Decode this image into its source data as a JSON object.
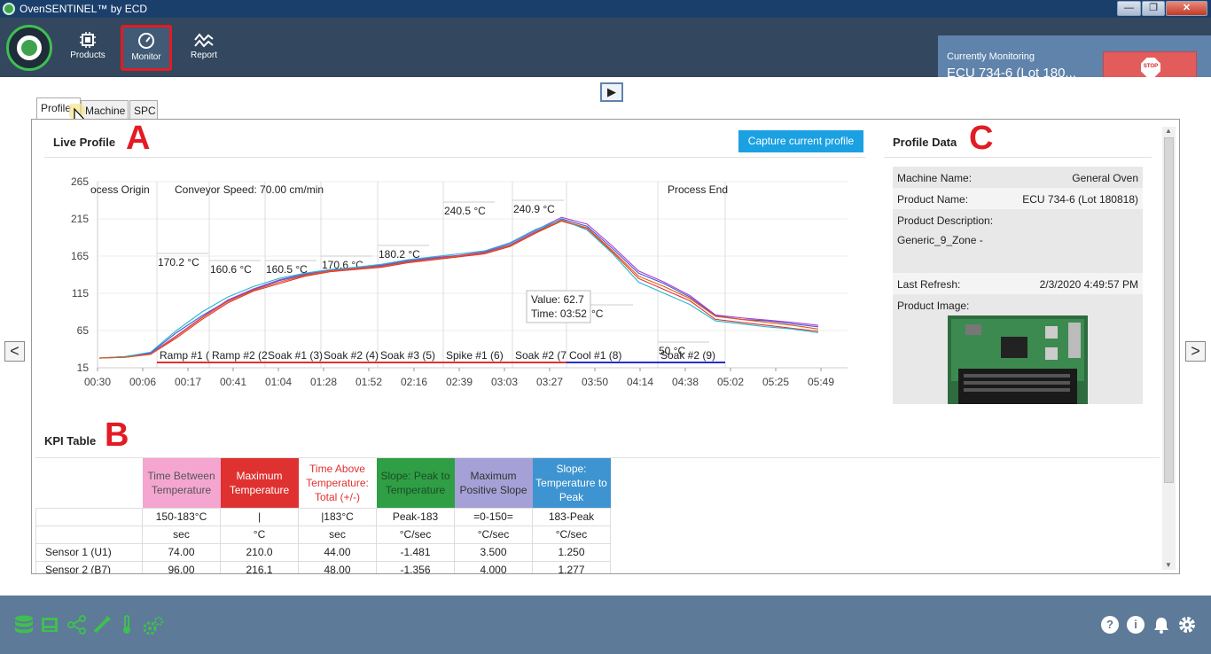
{
  "window": {
    "title": "OvenSENTINEL™ by ECD",
    "minimize": "—",
    "maximize": "❐",
    "close": "✕"
  },
  "nav": {
    "products": "Products",
    "monitor": "Monitor",
    "report": "Report"
  },
  "monitoring": {
    "label": "Currently Monitoring",
    "value": "ECU 734-6 (Lot 180...",
    "stop": "STOP"
  },
  "play_icon": "▶",
  "tabs": [
    "Profile",
    "Machine",
    "SPC"
  ],
  "live_profile": {
    "title": "Live Profile",
    "capture_label": "Capture current profile",
    "marker": "A"
  },
  "chart_data": {
    "type": "line",
    "title": "",
    "x_ticks": [
      "00:30",
      "00:06",
      "00:17",
      "00:41",
      "01:04",
      "01:28",
      "01:52",
      "02:16",
      "02:39",
      "03:03",
      "03:27",
      "03:50",
      "04:14",
      "04:38",
      "05:02",
      "05:25",
      "05:49"
    ],
    "y_ticks": [
      "265",
      "215",
      "165",
      "115",
      "65",
      "15"
    ],
    "ylim": [
      15,
      265
    ],
    "top_labels": [
      "ocess Origin",
      "Conveyor Speed: 70.00 cm/min",
      "Process End"
    ],
    "zones": [
      "Ramp #1 (",
      "Ramp #2 (2",
      "Soak #1 (3)",
      "Soak #2 (4)",
      "Soak #3 (5)",
      "Spike #1 (6)",
      "Soak #2 (7",
      "Cool #1 (8)",
      "Soak #2 (9)"
    ],
    "zone_temps": [
      "170.2 °C",
      "160.6 °C",
      "160.5 °C",
      "170.6 °C",
      "180.2 °C",
      "240.5 °C",
      "240.9 °C",
      "5 °C",
      "50 °C"
    ],
    "tooltip": {
      "value": "Value:  62.7",
      "time": "Time:  03:52"
    },
    "series": [
      {
        "color": "#3b5bdb",
        "values": [
          28,
          30,
          35,
          62,
          85,
          105,
          120,
          132,
          140,
          145,
          148,
          152,
          158,
          162,
          165,
          170,
          180,
          198,
          215,
          205,
          175,
          142,
          128,
          110,
          85,
          80,
          78,
          74,
          70
        ]
      },
      {
        "color": "#e03131",
        "values": [
          28,
          29,
          33,
          55,
          80,
          102,
          118,
          128,
          138,
          144,
          147,
          150,
          156,
          160,
          164,
          168,
          178,
          196,
          212,
          202,
          170,
          135,
          120,
          105,
          80,
          76,
          72,
          68,
          64
        ]
      },
      {
        "color": "#ae3ec9",
        "values": [
          28,
          30,
          34,
          58,
          83,
          106,
          121,
          133,
          141,
          146,
          149,
          153,
          159,
          163,
          166,
          171,
          182,
          200,
          217,
          208,
          178,
          145,
          130,
          112,
          86,
          82,
          79,
          76,
          72
        ]
      },
      {
        "color": "#22b8cf",
        "values": [
          28,
          30,
          36,
          65,
          90,
          110,
          124,
          135,
          142,
          147,
          150,
          154,
          160,
          164,
          168,
          172,
          183,
          201,
          214,
          200,
          168,
          130,
          115,
          100,
          78,
          74,
          70,
          67,
          62
        ]
      },
      {
        "color": "#e8590c",
        "values": [
          28,
          29,
          33,
          57,
          82,
          104,
          119,
          130,
          139,
          145,
          148,
          151,
          157,
          161,
          165,
          169,
          179,
          197,
          213,
          203,
          172,
          138,
          124,
          108,
          84,
          80,
          76,
          72,
          67
        ]
      }
    ]
  },
  "profile_data": {
    "title": "Profile Data",
    "marker": "C",
    "machine_name_label": "Machine Name:",
    "machine_name": "General Oven",
    "product_name_label": "Product Name:",
    "product_name": "ECU 734-6 (Lot 180818)",
    "product_description_label": "Product Description:",
    "product_description": "Generic_9_Zone -",
    "last_refresh_label": "Last Refresh:",
    "last_refresh": "2/3/2020 4:49:57 PM",
    "product_image_label": "Product Image:"
  },
  "kpi": {
    "title": "KPI Table",
    "marker": "B",
    "columns": [
      {
        "header": "Time Between Temperature",
        "sub": "150-183°C",
        "unit": "sec",
        "bg": "#f4a6d0",
        "fg": "#555"
      },
      {
        "header": "Maximum Temperature",
        "sub": "|",
        "unit": "°C",
        "bg": "#e03131",
        "fg": "#fff"
      },
      {
        "header": "Time Above Temperature: Total (+/-)",
        "sub": "|183°C",
        "unit": "sec",
        "bg": "#ffffff",
        "fg": "#e03131"
      },
      {
        "header": "Slope: Peak to Temperature",
        "sub": "Peak-183",
        "unit": "°C/sec",
        "bg": "#2f9e44",
        "fg": "#1b4d28"
      },
      {
        "header": "Maximum Positive Slope",
        "sub": "=0-150=",
        "unit": "°C/sec",
        "bg": "#a5a0d6",
        "fg": "#333"
      },
      {
        "header": "Slope: Temperature to Peak",
        "sub": "183-Peak",
        "unit": "°C/sec",
        "bg": "#3d94d1",
        "fg": "#fff"
      }
    ],
    "rows": [
      {
        "label": "Sensor 1 (U1)",
        "values": [
          "74.00",
          "210.0",
          "44.00",
          "-1.481",
          "3.500",
          "1.250"
        ]
      },
      {
        "label": "Sensor 2 (B7)",
        "values": [
          "96.00",
          "216.1",
          "48.00",
          "-1.356",
          "4.000",
          "1.277"
        ]
      }
    ]
  },
  "nav_arrows": {
    "left": "<",
    "right": ">"
  }
}
